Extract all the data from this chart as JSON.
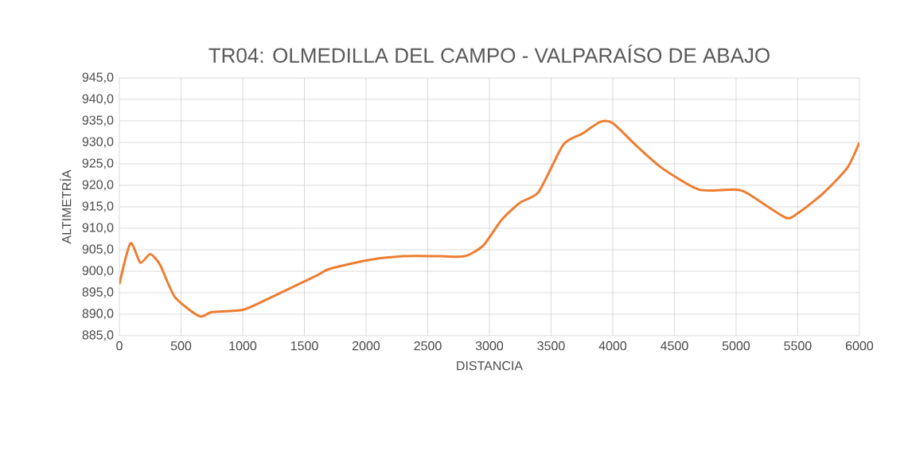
{
  "chart_data": {
    "type": "line",
    "title": "TR04: OLMEDILLA DEL CAMPO - VALPARAÍSO DE ABAJO",
    "xlabel": "DISTANCIA",
    "ylabel": "ALTIMETRÍA",
    "xlim": [
      0,
      6000
    ],
    "xticks": [
      0,
      500,
      1000,
      1500,
      2000,
      2500,
      3000,
      3500,
      4000,
      4500,
      5000,
      5500,
      6000
    ],
    "ylim": [
      885,
      945
    ],
    "yticks": [
      {
        "value": 885,
        "label": "885,0"
      },
      {
        "value": 890,
        "label": "890,0"
      },
      {
        "value": 895,
        "label": "895,0"
      },
      {
        "value": 900,
        "label": "900,0"
      },
      {
        "value": 905,
        "label": "905,0"
      },
      {
        "value": 910,
        "label": "910,0"
      },
      {
        "value": 915,
        "label": "915,0"
      },
      {
        "value": 920,
        "label": "920,0"
      },
      {
        "value": 925,
        "label": "925,0"
      },
      {
        "value": 930,
        "label": "930,0"
      },
      {
        "value": 935,
        "label": "935,0"
      },
      {
        "value": 940,
        "label": "940,0"
      },
      {
        "value": 945,
        "label": "945,0"
      }
    ],
    "grid": true,
    "marker": "none",
    "line_style": "solid",
    "series": [
      {
        "color": "#ed7d31",
        "x": [
          0,
          90,
          170,
          250,
          330,
          450,
          650,
          750,
          1000,
          1200,
          1600,
          1700,
          2000,
          2300,
          2600,
          2800,
          2950,
          3100,
          3250,
          3400,
          3600,
          3750,
          3900,
          4000,
          4200,
          4400,
          4700,
          5000,
          5100,
          5400,
          5500,
          5700,
          5900,
          6000
        ],
        "values": [
          897,
          906.5,
          902,
          904,
          901.5,
          894,
          889.5,
          890.5,
          891,
          893.5,
          899,
          900.5,
          902.5,
          903.5,
          903.5,
          903.5,
          906,
          912,
          916,
          918.5,
          929.5,
          932,
          934.8,
          934.5,
          929,
          924,
          919,
          919,
          918,
          912.5,
          913.5,
          918,
          924,
          930
        ]
      }
    ]
  }
}
